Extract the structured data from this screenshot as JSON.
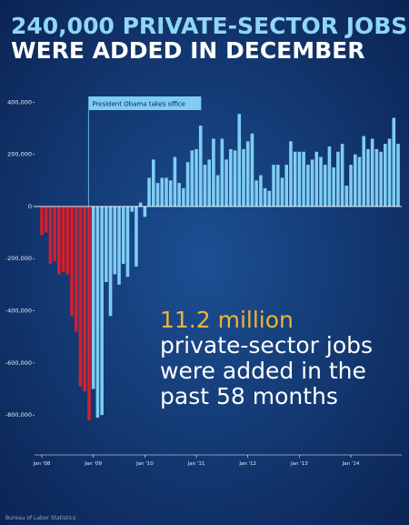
{
  "chart_data": {
    "type": "bar",
    "title_lines": [
      "240,000 PRIVATE-SECTOR JOBS",
      "WERE ADDED IN DECEMBER"
    ],
    "categories": [
      "Jan '08",
      null,
      null,
      null,
      null,
      null,
      null,
      null,
      null,
      null,
      null,
      null,
      "Jan '09",
      null,
      null,
      null,
      null,
      null,
      null,
      null,
      null,
      null,
      null,
      null,
      "Jan '10",
      null,
      null,
      null,
      null,
      null,
      null,
      null,
      null,
      null,
      null,
      null,
      "Jan '11",
      null,
      null,
      null,
      null,
      null,
      null,
      null,
      null,
      null,
      null,
      null,
      "Jan '12",
      null,
      null,
      null,
      null,
      null,
      null,
      null,
      null,
      null,
      null,
      null,
      "Jan '13",
      null,
      null,
      null,
      null,
      null,
      null,
      null,
      null,
      null,
      null,
      null,
      "Jan '14",
      null,
      null,
      null,
      null,
      null,
      null,
      null,
      null,
      null,
      null,
      null
    ],
    "series": [
      {
        "color": "#d41f2e",
        "values": [
          -110000,
          -100000,
          -220000,
          -210000,
          -260000,
          -250000,
          -260000,
          -420000,
          -480000,
          -690000,
          -710000,
          -820000,
          null,
          null,
          null,
          null,
          null,
          null,
          null,
          null,
          null,
          null,
          null,
          null,
          null,
          null,
          null,
          null,
          null,
          null,
          null,
          null,
          null,
          null,
          null,
          null,
          null,
          null,
          null,
          null,
          null,
          null,
          null,
          null,
          null,
          null,
          null,
          null,
          null,
          null,
          null,
          null,
          null,
          null,
          null,
          null,
          null,
          null,
          null,
          null,
          null,
          null,
          null,
          null,
          null,
          null,
          null,
          null,
          null,
          null,
          null,
          null,
          null,
          null,
          null,
          null,
          null,
          null,
          null,
          null,
          null,
          null,
          null,
          null
        ]
      },
      {
        "color": "#7fcdf2",
        "values": [
          null,
          null,
          null,
          null,
          null,
          null,
          null,
          null,
          null,
          null,
          null,
          null,
          -700000,
          -810000,
          -800000,
          -290000,
          -420000,
          -260000,
          -300000,
          -220000,
          -270000,
          -20000,
          -230000,
          15000,
          -40000,
          110000,
          180000,
          90000,
          110000,
          110000,
          100000,
          190000,
          90000,
          70000,
          170000,
          215000,
          220000,
          310000,
          160000,
          180000,
          260000,
          120000,
          260000,
          180000,
          220000,
          215000,
          355000,
          220000,
          250000,
          280000,
          100000,
          120000,
          70000,
          60000,
          160000,
          160000,
          110000,
          160000,
          250000,
          210000,
          210000,
          210000,
          160000,
          180000,
          210000,
          190000,
          160000,
          230000,
          150000,
          210000,
          240000,
          80000,
          160000,
          200000,
          190000,
          270000,
          220000,
          260000,
          220000,
          210000,
          240000,
          260000,
          340000,
          240000
        ]
      }
    ],
    "ylim": [
      -953000,
      443000
    ],
    "yticks": [
      {
        "value": 400000,
        "label": "400,000"
      },
      {
        "value": 200000,
        "label": "200,000"
      },
      0,
      {
        "value": -200000,
        "label": "-200,000"
      },
      {
        "value": -400000,
        "label": "-400,000"
      },
      {
        "value": -600000,
        "label": "-600,000"
      },
      {
        "value": -800000,
        "label": "-800,000"
      }
    ],
    "annotation": {
      "text": "President Obama takes office",
      "category": 12
    },
    "callout": {
      "highlight": "11.2 million",
      "lines": [
        "private-sector jobs",
        "were added in the",
        "past 58 months"
      ]
    },
    "source": "Bureau of Labor Statistics"
  }
}
